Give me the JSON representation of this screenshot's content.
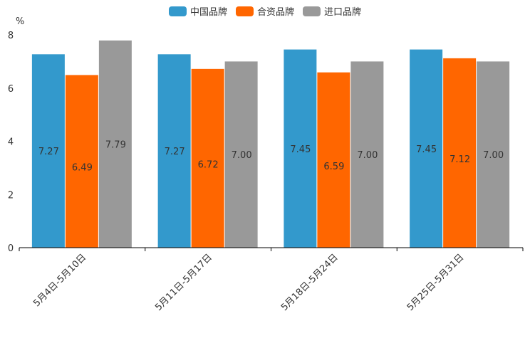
{
  "chart_data": {
    "type": "bar",
    "title": "",
    "xlabel": "",
    "ylabel": "%",
    "ylim": [
      0,
      8
    ],
    "yticks": [
      0,
      2,
      4,
      6,
      8
    ],
    "legend_position": "top-center",
    "grid": false,
    "categories": [
      "5月4日-5月10日",
      "5月11日-5月17日",
      "5月18日-5月24日",
      "5月25日-5月31日"
    ],
    "series": [
      {
        "name": "中国品牌",
        "color": "#3399CC",
        "values": [
          7.27,
          7.27,
          7.45,
          7.45
        ],
        "labels": [
          "7.27",
          "7.27",
          "7.45",
          "7.45"
        ]
      },
      {
        "name": "合资品牌",
        "color": "#FF6600",
        "values": [
          6.49,
          6.72,
          6.59,
          7.12
        ],
        "labels": [
          "6.49",
          "6.72",
          "6.59",
          "7.12"
        ]
      },
      {
        "name": "进口品牌",
        "color": "#999999",
        "values": [
          7.79,
          7.0,
          7.0,
          7.0
        ],
        "labels": [
          "7.79",
          "7.00",
          "7.00",
          "7.00"
        ]
      }
    ]
  }
}
